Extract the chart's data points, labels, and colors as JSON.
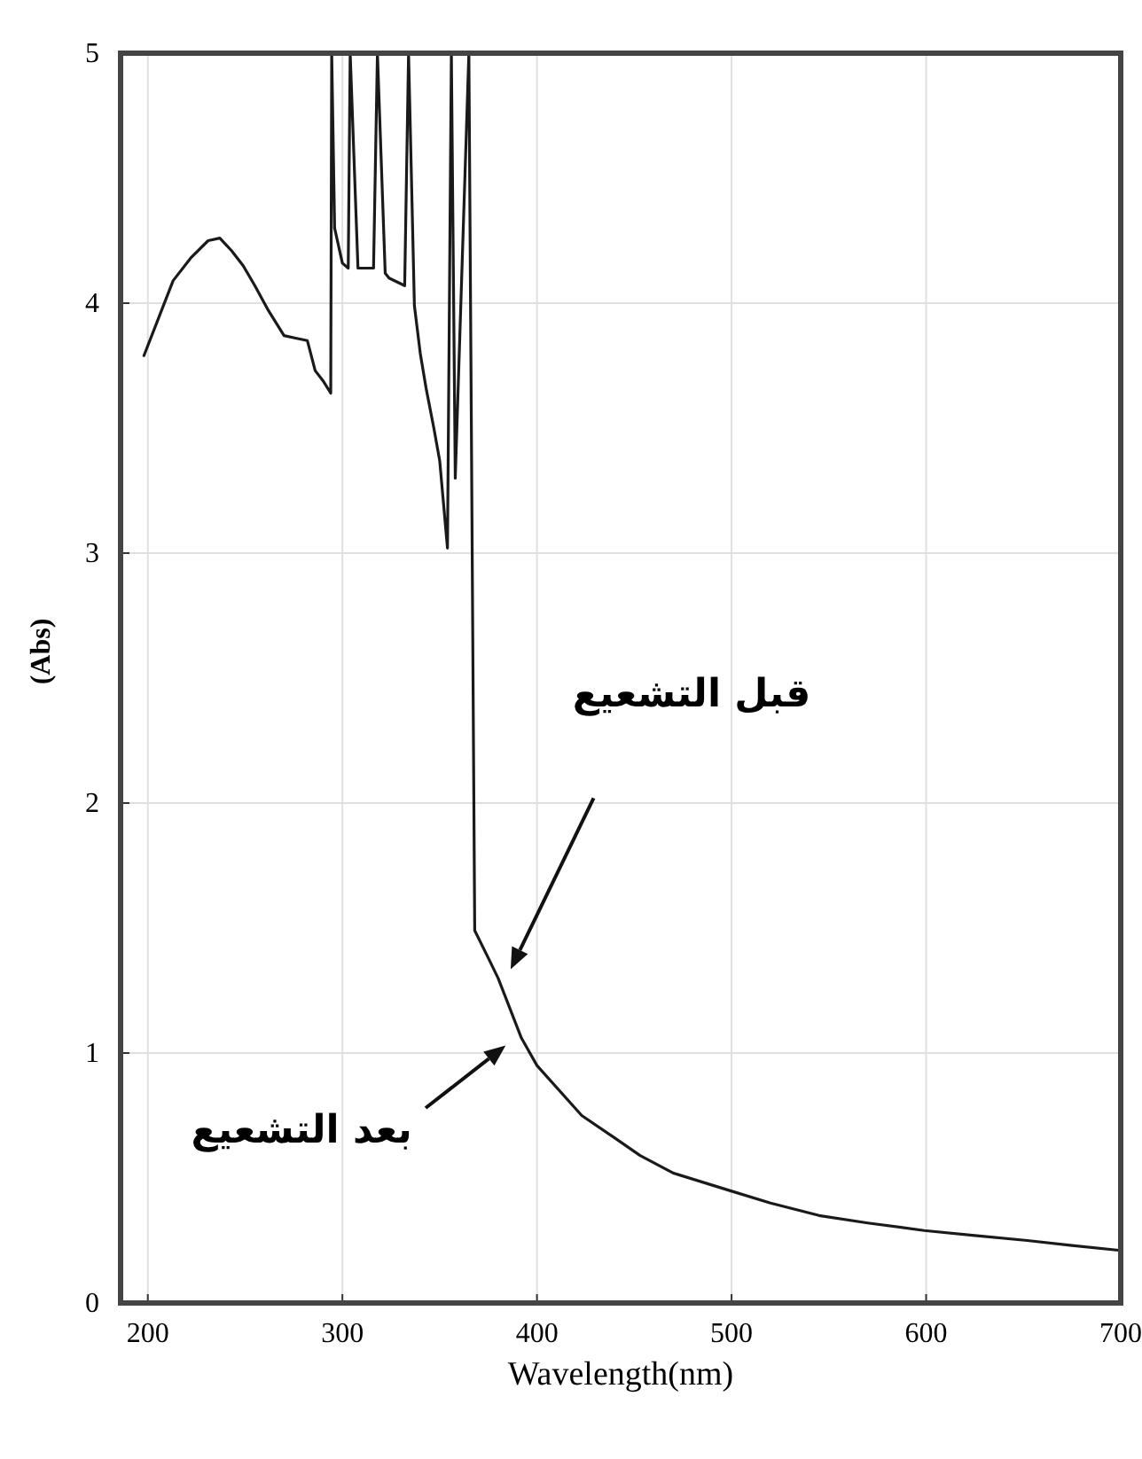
{
  "chart_data": {
    "type": "line",
    "xlabel": "Wavelength(nm)",
    "ylabel": "(Abs)",
    "xlim": [
      186,
      700
    ],
    "ylim": [
      0,
      5
    ],
    "xticks": [
      200,
      300,
      400,
      500,
      600,
      700
    ],
    "yticks": [
      0,
      1,
      2,
      3,
      4,
      5
    ],
    "grid": true,
    "series": [
      {
        "color": "#1a1a1a",
        "x": [
          198,
          206,
          213,
          222,
          231,
          237,
          243,
          249,
          255,
          262,
          270,
          276,
          282,
          286,
          290,
          294,
          294.5,
          296,
          300,
          303,
          304,
          308,
          316,
          318,
          322,
          324,
          332,
          334,
          337,
          340,
          343,
          347,
          350,
          354,
          356,
          358,
          365,
          368,
          375,
          380,
          392,
          400,
          423,
          440,
          453,
          470,
          499,
          520,
          545,
          570,
          599,
          625,
          652,
          675,
          700
        ],
        "values": [
          3.79,
          3.95,
          4.09,
          4.18,
          4.25,
          4.26,
          4.21,
          4.15,
          4.07,
          3.97,
          3.87,
          3.86,
          3.85,
          3.73,
          3.69,
          3.64,
          5,
          4.3,
          4.16,
          4.14,
          5,
          4.14,
          4.14,
          5,
          4.12,
          4.1,
          4.07,
          5,
          3.99,
          3.8,
          3.66,
          3.5,
          3.37,
          3.02,
          5,
          3.3,
          5,
          1.49,
          1.38,
          1.3,
          1.06,
          0.95,
          0.75,
          0.66,
          0.59,
          0.52,
          0.45,
          0.4,
          0.35,
          0.32,
          0.29,
          0.27,
          0.25,
          0.23,
          0.21
        ]
      }
    ],
    "annotations": [
      "قبل التشعيع",
      "بعد التشعيع"
    ]
  }
}
